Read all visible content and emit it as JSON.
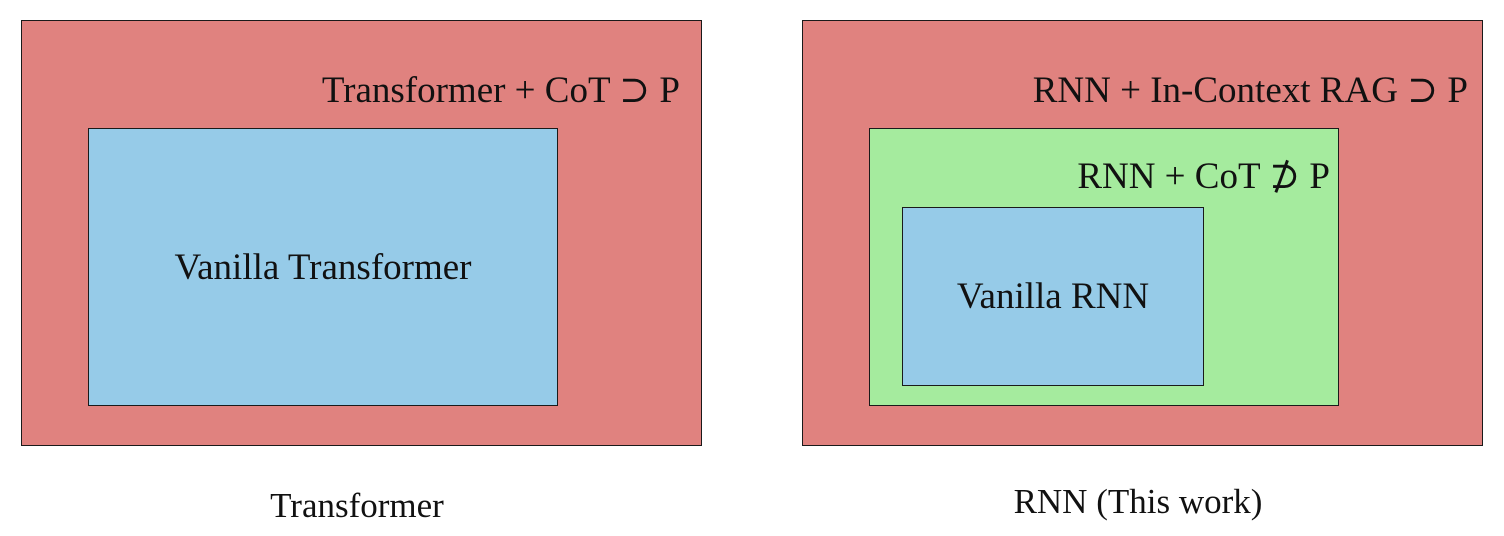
{
  "transformer_panel": {
    "outer_label": "Transformer + CoT ⊃ P",
    "inner_label": "Vanilla Transformer",
    "caption": "Transformer"
  },
  "rnn_panel": {
    "outer_label": "RNN + In-Context RAG ⊃ P",
    "middle_label": "RNN + CoT ⊅ P",
    "inner_label": "Vanilla RNN",
    "caption": "RNN (This work)"
  },
  "colors": {
    "outer_fill": "#e0827f",
    "middle_fill": "#a5eb9e",
    "inner_fill": "#96cbe8",
    "border": "#1a1a1a"
  }
}
